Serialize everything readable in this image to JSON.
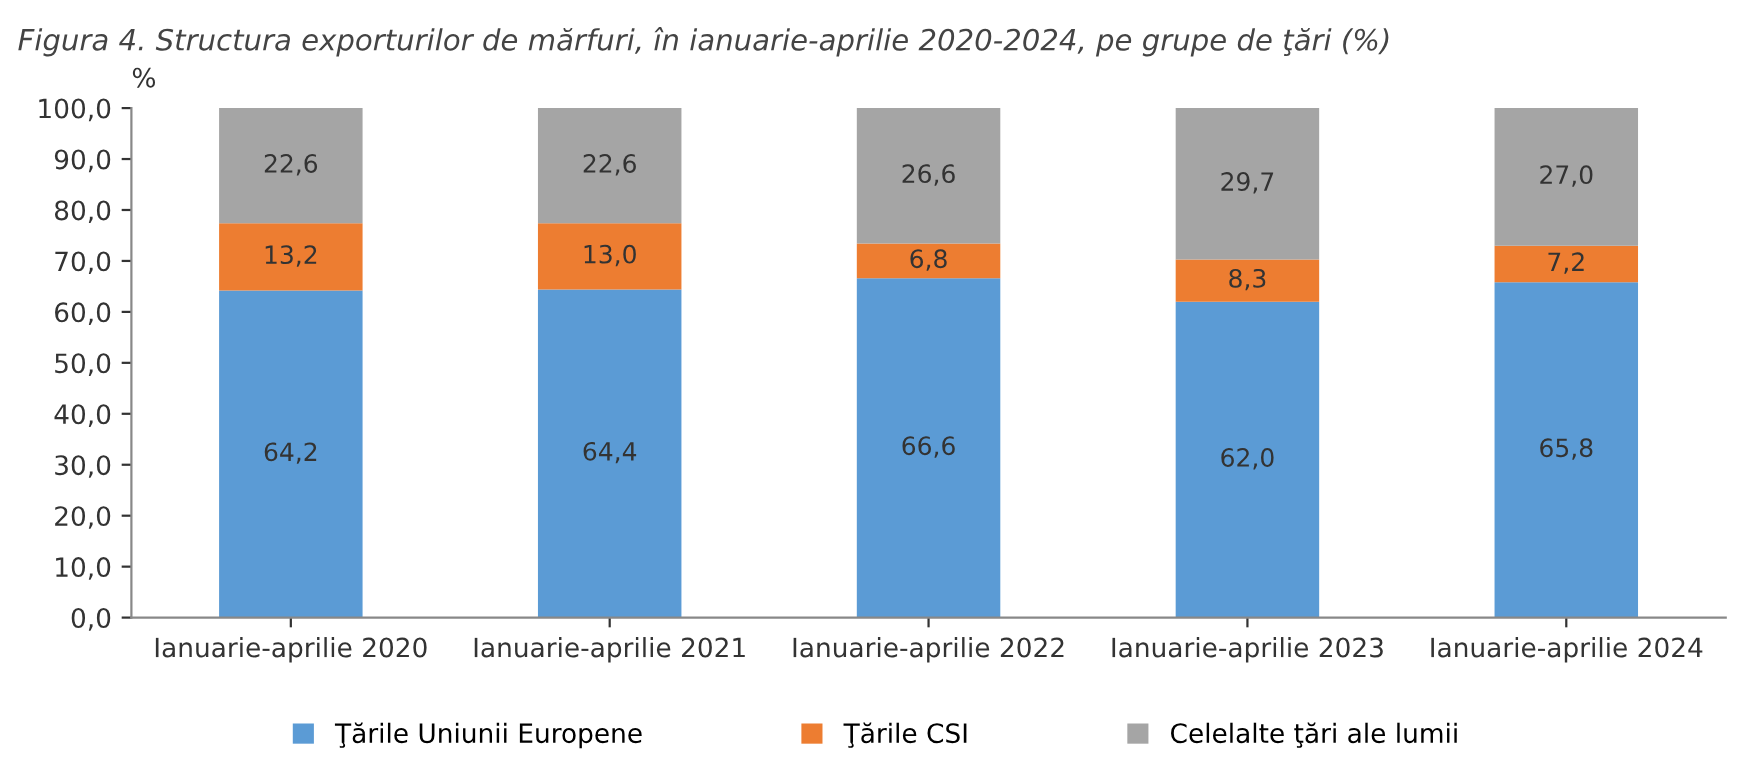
{
  "chart_data": {
    "type": "bar",
    "stacked": true,
    "title": "Figura 4. Structura exporturilor de mărfuri, în ianuarie-aprilie 2020-2024, pe grupe de ţări (%)",
    "ylabel": "%",
    "categories": [
      "Ianuarie-aprilie 2020",
      "Ianuarie-aprilie 2021",
      "Ianuarie-aprilie 2022",
      "Ianuarie-aprilie 2023",
      "Ianuarie-aprilie 2024"
    ],
    "series": [
      {
        "name": "Ţările Uniunii Europene",
        "color": "#5b9bd5",
        "values": [
          64.2,
          64.4,
          66.6,
          62.0,
          65.8
        ],
        "value_labels": [
          "64,2",
          "64,4",
          "66,6",
          "62,0",
          "65,8"
        ]
      },
      {
        "name": "Ţările CSI",
        "color": "#ed7d31",
        "values": [
          13.2,
          13.0,
          6.8,
          8.3,
          7.2
        ],
        "value_labels": [
          "13,2",
          "13,0",
          "6,8",
          "8,3",
          "7,2"
        ]
      },
      {
        "name": "Celelalte ţări ale lumii",
        "color": "#a5a5a5",
        "values": [
          22.6,
          22.6,
          26.6,
          29.7,
          27.0
        ],
        "value_labels": [
          "22,6",
          "22,6",
          "26,6",
          "29,7",
          "27,0"
        ]
      }
    ],
    "ylim": [
      0,
      100
    ],
    "yticks": [
      {
        "value": 0,
        "label": "0,0"
      },
      {
        "value": 10,
        "label": "10,0"
      },
      {
        "value": 20,
        "label": "20,0"
      },
      {
        "value": 30,
        "label": "30,0"
      },
      {
        "value": 40,
        "label": "40,0"
      },
      {
        "value": 50,
        "label": "50,0"
      },
      {
        "value": 60,
        "label": "60,0"
      },
      {
        "value": 70,
        "label": "70,0"
      },
      {
        "value": 80,
        "label": "80,0"
      },
      {
        "value": 90,
        "label": "90,0"
      },
      {
        "value": 100,
        "label": "100,0"
      }
    ],
    "grid": false,
    "legend": "bottom"
  }
}
